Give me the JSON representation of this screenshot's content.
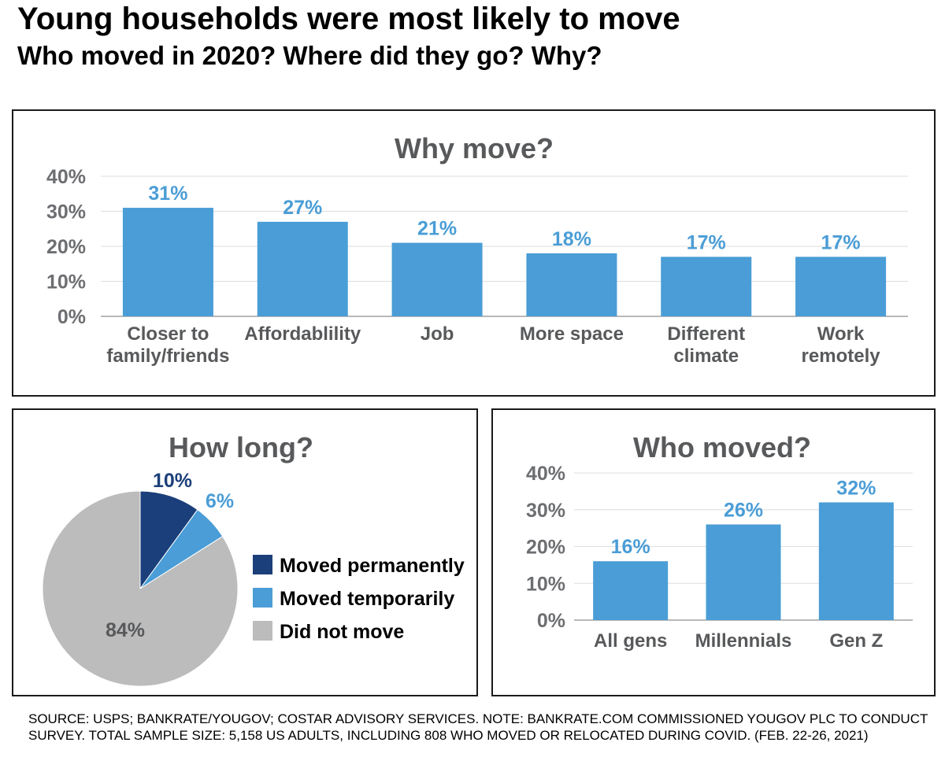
{
  "title": "Young households were most likely to move",
  "subtitle": "Who moved in 2020? Where did they go? Why?",
  "footnote": [
    "SOURCE: USPS; BANKRATE/YOUGOV; COSTAR ADVISORY SERVICES. NOTE: BANKRATE.COM COMMISSIONED YOUGOV PLC TO CONDUCT",
    "SURVEY. TOTAL SAMPLE SIZE: 5,158 US ADULTS, INCLUDING 808  WHO MOVED OR RELOCATED DURING COVID. (FEB. 22-26, 2021)"
  ],
  "chart_data": [
    {
      "type": "bar",
      "title": "Why move?",
      "categories": [
        [
          "Closer to",
          "family/friends"
        ],
        [
          "Affordablility"
        ],
        [
          "Job"
        ],
        [
          "More space"
        ],
        [
          "Different",
          "climate"
        ],
        [
          "Work",
          "remotely"
        ]
      ],
      "values": [
        31,
        27,
        21,
        18,
        17,
        17
      ],
      "data_labels": [
        "31%",
        "27%",
        "21%",
        "18%",
        "17%",
        "17%"
      ],
      "yticks": [
        "0%",
        "10%",
        "20%",
        "30%",
        "40%"
      ],
      "ylim": [
        0,
        40
      ],
      "grid": true,
      "bar_color": "#4a9dd6"
    },
    {
      "type": "pie",
      "title": "How long?",
      "slices": [
        {
          "name": "Moved permanently",
          "value": 10,
          "label": "10%",
          "color": "#1b3f7a",
          "label_color": "#1b3f7a"
        },
        {
          "name": "Moved temporarily",
          "value": 6,
          "label": "6%",
          "color": "#4a9dd6",
          "label_color": "#4a9dd6"
        },
        {
          "name": "Did not move",
          "value": 84,
          "label": "84%",
          "color": "#bcbcbc",
          "label_color": "#58595b"
        }
      ],
      "legend_placement": "right"
    },
    {
      "type": "bar",
      "title": "Who moved?",
      "categories": [
        [
          "All gens"
        ],
        [
          "Millennials"
        ],
        [
          "Gen Z"
        ]
      ],
      "values": [
        16,
        26,
        32
      ],
      "data_labels": [
        "16%",
        "26%",
        "32%"
      ],
      "yticks": [
        "0%",
        "10%",
        "20%",
        "30%",
        "40%"
      ],
      "ylim": [
        0,
        40
      ],
      "grid": true,
      "bar_color": "#4a9dd6"
    }
  ]
}
